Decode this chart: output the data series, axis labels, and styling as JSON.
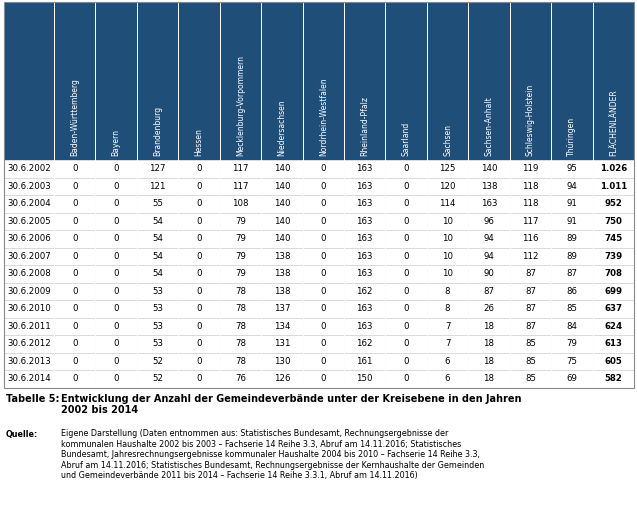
{
  "header_bg": "#1F4E79",
  "header_fg": "#FFFFFF",
  "border_color": "#CCCCCC",
  "columns": [
    "Baden-Württemberg",
    "Bayern",
    "Brandenburg",
    "Hessen",
    "Mecklenburg-Vorpommern",
    "Niedersachsen",
    "Nordrhein-Westfalen",
    "Rheinland-Pfalz",
    "Saarland",
    "Sachsen",
    "Sachsen-Anhalt",
    "Schleswig-Holstein",
    "Thüringen",
    "FLÄCHENLÄNDER"
  ],
  "rows": [
    [
      "30.6.2002",
      0,
      0,
      127,
      0,
      117,
      140,
      0,
      163,
      0,
      125,
      140,
      119,
      95,
      "1.026"
    ],
    [
      "30.6.2003",
      0,
      0,
      121,
      0,
      117,
      140,
      0,
      163,
      0,
      120,
      138,
      118,
      94,
      "1.011"
    ],
    [
      "30.6.2004",
      0,
      0,
      55,
      0,
      108,
      140,
      0,
      163,
      0,
      114,
      163,
      118,
      91,
      "952"
    ],
    [
      "30.6.2005",
      0,
      0,
      54,
      0,
      79,
      140,
      0,
      163,
      0,
      10,
      96,
      117,
      91,
      "750"
    ],
    [
      "30.6.2006",
      0,
      0,
      54,
      0,
      79,
      140,
      0,
      163,
      0,
      10,
      94,
      116,
      89,
      "745"
    ],
    [
      "30.6.2007",
      0,
      0,
      54,
      0,
      79,
      138,
      0,
      163,
      0,
      10,
      94,
      112,
      89,
      "739"
    ],
    [
      "30.6.2008",
      0,
      0,
      54,
      0,
      79,
      138,
      0,
      163,
      0,
      10,
      90,
      87,
      87,
      "708"
    ],
    [
      "30.6.2009",
      0,
      0,
      53,
      0,
      78,
      138,
      0,
      162,
      0,
      8,
      87,
      87,
      86,
      "699"
    ],
    [
      "30.6.2010",
      0,
      0,
      53,
      0,
      78,
      137,
      0,
      163,
      0,
      8,
      26,
      87,
      85,
      "637"
    ],
    [
      "30.6.2011",
      0,
      0,
      53,
      0,
      78,
      134,
      0,
      163,
      0,
      7,
      18,
      87,
      84,
      "624"
    ],
    [
      "30.6.2012",
      0,
      0,
      53,
      0,
      78,
      131,
      0,
      162,
      0,
      7,
      18,
      85,
      79,
      "613"
    ],
    [
      "30.6.2013",
      0,
      0,
      52,
      0,
      78,
      130,
      0,
      161,
      0,
      6,
      18,
      85,
      75,
      "605"
    ],
    [
      "30.6.2014",
      0,
      0,
      52,
      0,
      76,
      126,
      0,
      150,
      0,
      6,
      18,
      85,
      69,
      "582"
    ]
  ],
  "table_title_label": "Tabelle 5:",
  "table_title_text": "Entwicklung der Anzahl der Gemeindeverbände unter der Kreisebene in den Jahren\n2002 bis 2014",
  "source_label": "Quelle:",
  "source_text": "Eigene Darstellung (Daten entnommen aus: Statistisches Bundesamt, Rechnungsergebnisse der\nkommunalen Haushalte 2002 bis 2003 – Fachserie 14 Reihe 3.3, Abruf am 14.11.2016; Statistisches\nBundesamt, Jahresrechnungsergebnisse kommunaler Haushalte 2004 bis 2010 – Fachserie 14 Reihe 3.3,\nAbruf am 14.11.2016; Statistisches Bundesamt, Rechnungsergebnisse der Kernhaushalte der Gemeinden\nund Gemeindeverbände 2011 bis 2014 – Fachserie 14 Reihe 3.3.1, Abruf am 14.11.2016)"
}
